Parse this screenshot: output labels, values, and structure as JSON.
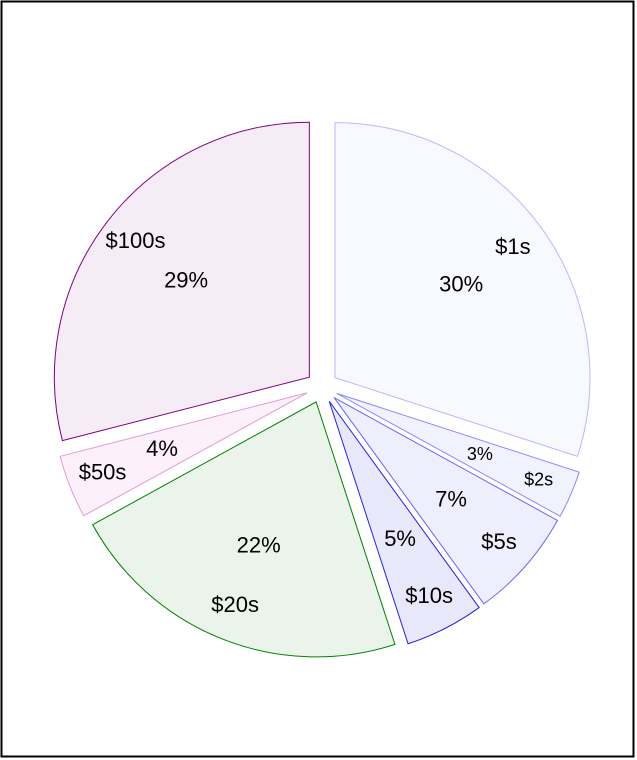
{
  "chart_data": {
    "type": "pie",
    "categories": [
      "$1s",
      "$2s",
      "$5s",
      "$10s",
      "$20s",
      "$50s",
      "$100s"
    ],
    "values": [
      30,
      3,
      7,
      5,
      22,
      4,
      29
    ],
    "value_labels": [
      "30%",
      "3%",
      "7%",
      "5%",
      "22%",
      "4%",
      "29%"
    ],
    "colors": [
      "#b8b8ff",
      "#8888ff",
      "#6666ff",
      "#2222dd",
      "#008000",
      "#e39ad6",
      "#800080"
    ],
    "fills": [
      "#f8f8ff",
      "#f2f2ff",
      "#eeeefc",
      "#e8e8fa",
      "#eaf4ea",
      "#fcf0fa",
      "#f5ecf5"
    ]
  }
}
